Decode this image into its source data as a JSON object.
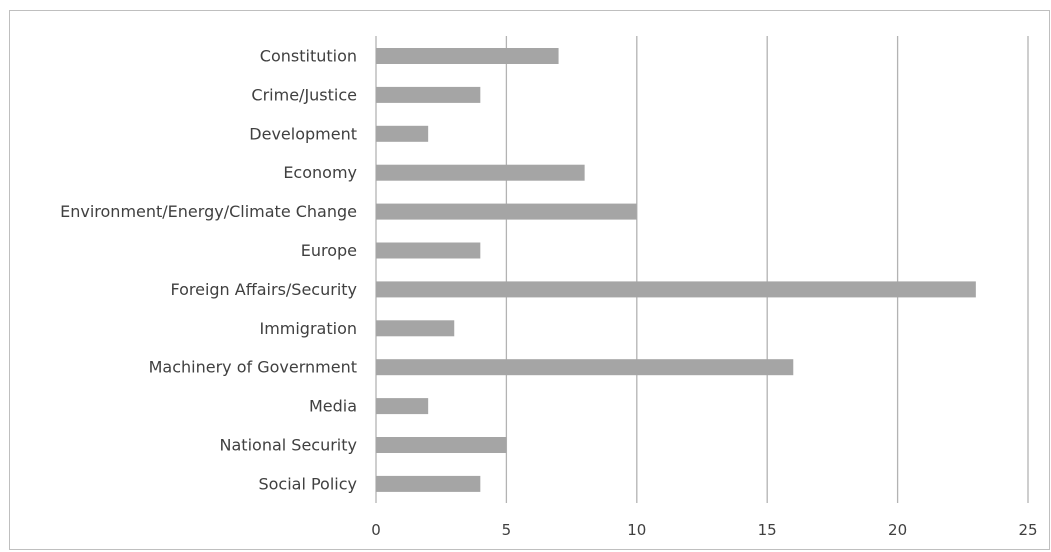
{
  "chart_data": {
    "type": "bar",
    "orientation": "horizontal",
    "title": "",
    "xlabel": "",
    "ylabel": "",
    "categories": [
      "Constitution",
      "Crime/Justice",
      "Development",
      "Economy",
      "Environment/Energy/Climate Change",
      "Europe",
      "Foreign Affairs/Security",
      "Immigration",
      "Machinery of Government",
      "Media",
      "National Security",
      "Social Policy"
    ],
    "values": [
      7,
      4,
      2,
      8,
      10,
      4,
      23,
      3,
      16,
      2,
      5,
      4
    ],
    "xlim": [
      0,
      25
    ],
    "xticks": [
      0,
      5,
      10,
      15,
      20,
      25
    ],
    "grid": true,
    "legend": "none",
    "bar_color": "#a5a5a5",
    "grid_color": "#b3b3b3",
    "text_color": "#404040"
  }
}
